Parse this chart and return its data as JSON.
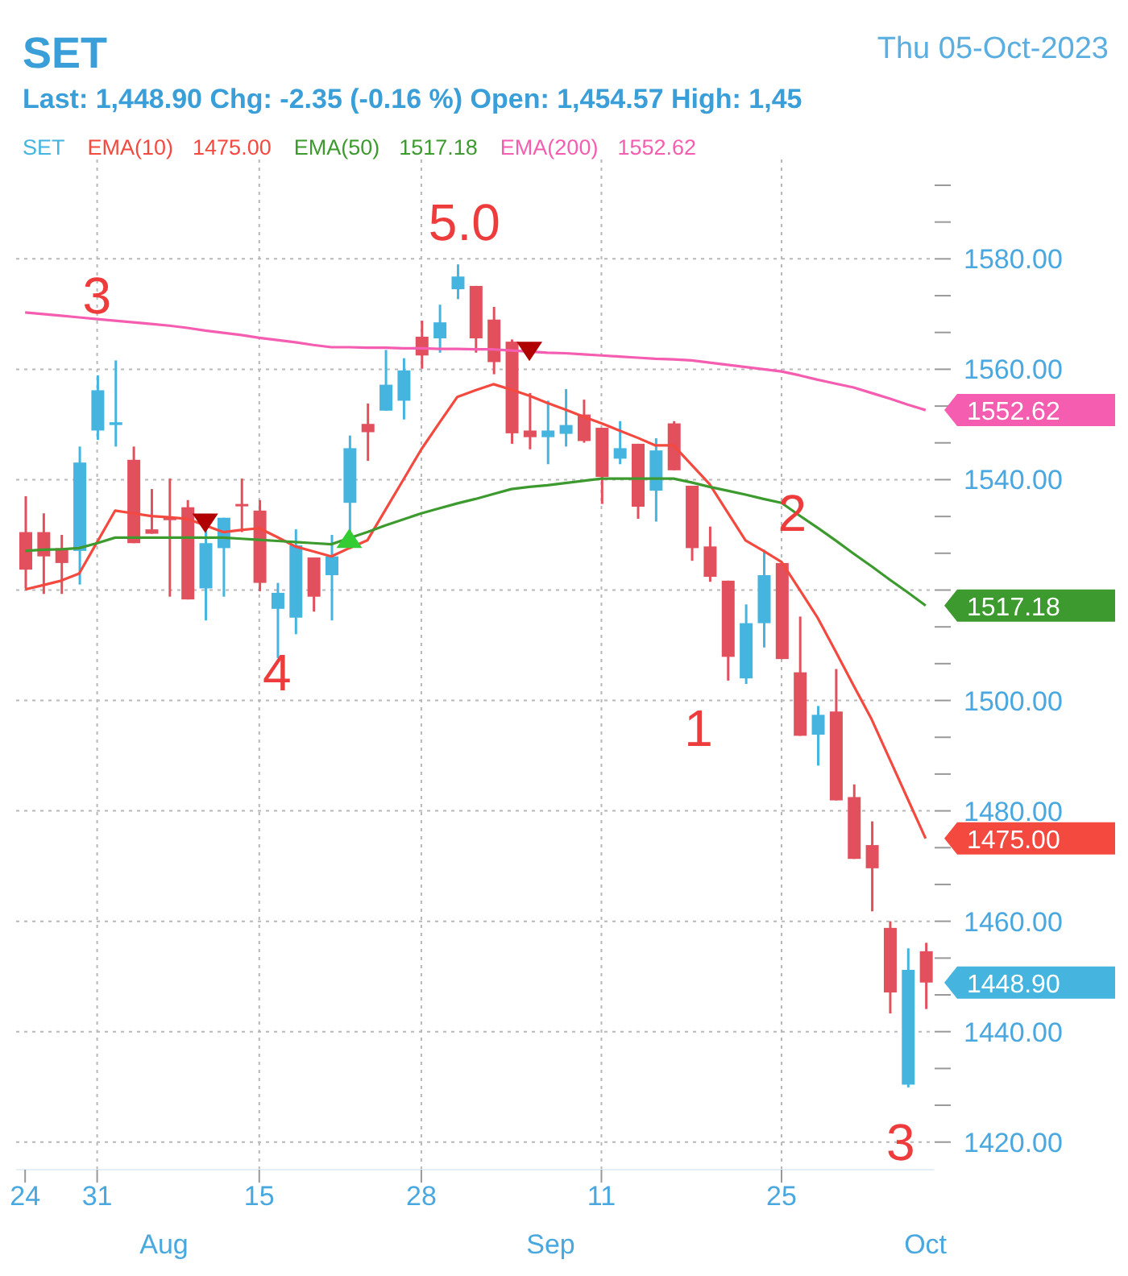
{
  "chart_data": {
    "type": "candlestick",
    "title": "SET",
    "subtitle": "Thu 05-Oct-2023",
    "categories": [
      "24",
      null,
      null,
      null,
      "31",
      null,
      null,
      null,
      null,
      null,
      null,
      null,
      null,
      "15",
      null,
      null,
      null,
      null,
      null,
      null,
      null,
      null,
      "28",
      null,
      null,
      null,
      null,
      null,
      null,
      null,
      null,
      null,
      "11",
      null,
      null,
      null,
      null,
      null,
      null,
      null,
      null,
      null,
      "25",
      null,
      null,
      null,
      null,
      null,
      null,
      null,
      null
    ],
    "series": [
      {
        "name": "SET",
        "color": "#45b5e0",
        "ohlc": [
          [
            1530.5,
            1537.0,
            1520.3,
            1523.7
          ],
          [
            1530.5,
            1533.9,
            1519.3,
            1526.1
          ],
          [
            1527.6,
            1530.0,
            1519.3,
            1524.9
          ],
          [
            1527.1,
            1546.0,
            1521.0,
            1543.1
          ],
          [
            1548.9,
            1558.9,
            1547.2,
            1556.2
          ],
          [
            1549.9,
            1561.6,
            1546.0,
            1550.4
          ],
          [
            1543.6,
            1546.0,
            1528.5,
            1528.5
          ],
          [
            1531.0,
            1538.3,
            1530.2,
            1530.2
          ],
          [
            1533.1,
            1540.2,
            1518.8,
            1532.7
          ],
          [
            1535.0,
            1536.3,
            1518.3,
            1518.3
          ],
          [
            1520.3,
            1531.0,
            1514.5,
            1528.5
          ],
          [
            1527.6,
            1533.1,
            1518.8,
            1533.1
          ],
          [
            1535.6,
            1540.2,
            1530.5,
            1535.2
          ],
          [
            1534.4,
            1536.3,
            1519.8,
            1521.3
          ],
          [
            1516.6,
            1521.3,
            1507.7,
            1519.5
          ],
          [
            1515.0,
            1531.0,
            1512.0,
            1528.1
          ],
          [
            1525.9,
            1525.9,
            1516.1,
            1518.8
          ],
          [
            1522.7,
            1530.0,
            1514.5,
            1526.1
          ],
          [
            1535.8,
            1548.0,
            1530.5,
            1545.7
          ],
          [
            1550.1,
            1553.8,
            1543.4,
            1548.6
          ],
          [
            1552.5,
            1563.5,
            1552.5,
            1557.2
          ],
          [
            1554.3,
            1562.0,
            1550.9,
            1559.8
          ],
          [
            1565.9,
            1568.8,
            1560.1,
            1562.5
          ],
          [
            1565.6,
            1571.7,
            1563.0,
            1568.5
          ],
          [
            1574.5,
            1579.0,
            1572.7,
            1576.8
          ],
          [
            1575.1,
            1575.1,
            1563.0,
            1565.6
          ],
          [
            1569.0,
            1571.3,
            1559.1,
            1561.3
          ],
          [
            1565.0,
            1565.4,
            1546.5,
            1548.4
          ],
          [
            1548.9,
            1555.7,
            1545.5,
            1547.7
          ],
          [
            1547.7,
            1554.3,
            1542.8,
            1548.9
          ],
          [
            1548.3,
            1556.4,
            1546.0,
            1549.9
          ],
          [
            1551.8,
            1554.5,
            1546.7,
            1547.0
          ],
          [
            1549.4,
            1549.4,
            1535.6,
            1540.5
          ],
          [
            1543.8,
            1550.6,
            1542.8,
            1545.7
          ],
          [
            1546.5,
            1546.5,
            1532.9,
            1535.1
          ],
          [
            1538.0,
            1547.5,
            1532.4,
            1545.3
          ],
          [
            1550.2,
            1550.6,
            1541.7,
            1541.7
          ],
          [
            1538.9,
            1538.9,
            1525.3,
            1527.6
          ],
          [
            1527.9,
            1531.5,
            1521.5,
            1522.4
          ],
          [
            1521.7,
            1521.7,
            1503.6,
            1507.9
          ],
          [
            1504.0,
            1517.4,
            1503.0,
            1514.0
          ],
          [
            1514.0,
            1527.3,
            1509.6,
            1522.7
          ],
          [
            1524.9,
            1524.9,
            1507.5,
            1507.5
          ],
          [
            1505.1,
            1515.2,
            1493.6,
            1493.6
          ],
          [
            1493.8,
            1499.0,
            1488.2,
            1497.4
          ],
          [
            1498.0,
            1505.7,
            1481.9,
            1481.9
          ],
          [
            1482.5,
            1484.8,
            1471.3,
            1471.3
          ],
          [
            1473.8,
            1478.1,
            1461.8,
            1469.6
          ],
          [
            1458.8,
            1460.0,
            1443.3,
            1447.1
          ],
          [
            1430.4,
            1455.1,
            1429.9,
            1451.2
          ],
          [
            1454.57,
            1456.1,
            1444.1,
            1448.9
          ]
        ],
        "colors": [
          "#e2505e",
          "#e2505e",
          "#e2505e",
          "#45b5e0",
          "#45b5e0",
          "#45b5e0",
          "#e2505e",
          "#e2505e",
          "#e2505e",
          "#e2505e",
          "#45b5e0",
          "#45b5e0",
          "#e2505e",
          "#e2505e",
          "#45b5e0",
          "#45b5e0",
          "#e2505e",
          "#45b5e0",
          "#45b5e0",
          "#e2505e",
          "#45b5e0",
          "#45b5e0",
          "#e2505e",
          "#45b5e0",
          "#45b5e0",
          "#e2505e",
          "#e2505e",
          "#e2505e",
          "#e2505e",
          "#45b5e0",
          "#45b5e0",
          "#e2505e",
          "#e2505e",
          "#45b5e0",
          "#e2505e",
          "#45b5e0",
          "#e2505e",
          "#e2505e",
          "#e2505e",
          "#e2505e",
          "#45b5e0",
          "#45b5e0",
          "#e2505e",
          "#e2505e",
          "#45b5e0",
          "#e2505e",
          "#e2505e",
          "#e2505e",
          "#e2505e",
          "#45b5e0",
          "#e2505e"
        ]
      },
      {
        "name": "EMA(10)",
        "type": "line",
        "color": "#f4493f",
        "values": [
          1520.1,
          1520.9,
          1521.7,
          1523.0,
          1528.7,
          1534.4,
          1533.9,
          1533.4,
          1533.2,
          1532.9,
          1531.7,
          1530.5,
          1530.9,
          1531.2,
          1529.6,
          1527.9,
          1527.0,
          1526.1,
          1527.6,
          1529.0,
          1534.5,
          1540.0,
          1545.5,
          1550.3,
          1555.0,
          1556.2,
          1557.3,
          1556.3,
          1555.2,
          1553.9,
          1552.7,
          1551.4,
          1550.2,
          1548.9,
          1547.6,
          1546.2,
          1546.2,
          1542.7,
          1539.2,
          1534.1,
          1529.0,
          1527.1,
          1525.1,
          1520.1,
          1515.0,
          1508.9,
          1502.7,
          1496.6,
          1489.4,
          1482.2,
          1475.0
        ]
      },
      {
        "name": "EMA(50)",
        "type": "line",
        "color": "#3c9a2e",
        "values": [
          1527.1,
          1527.3,
          1527.4,
          1527.6,
          1528.5,
          1529.5,
          1529.5,
          1529.5,
          1529.5,
          1529.5,
          1529.5,
          1529.5,
          1529.3,
          1529.1,
          1528.9,
          1528.7,
          1528.5,
          1528.3,
          1529.4,
          1530.5,
          1531.7,
          1532.8,
          1533.9,
          1534.8,
          1535.7,
          1536.5,
          1537.4,
          1538.3,
          1538.7,
          1539.0,
          1539.4,
          1539.8,
          1540.2,
          1540.2,
          1540.2,
          1540.2,
          1540.2,
          1539.5,
          1538.7,
          1538.0,
          1537.3,
          1536.5,
          1535.8,
          1533.5,
          1531.3,
          1529.0,
          1526.6,
          1524.3,
          1521.9,
          1519.6,
          1517.2
        ]
      },
      {
        "name": "EMA(200)",
        "type": "line",
        "color": "#f55db0",
        "values": [
          1570.3,
          1570.0,
          1569.7,
          1569.4,
          1569.1,
          1568.8,
          1568.5,
          1568.2,
          1567.9,
          1567.5,
          1567.0,
          1566.6,
          1566.2,
          1565.7,
          1565.3,
          1564.9,
          1564.4,
          1564.0,
          1564.0,
          1563.9,
          1563.9,
          1563.8,
          1563.8,
          1563.7,
          1563.7,
          1563.6,
          1563.6,
          1563.4,
          1563.2,
          1563.0,
          1562.9,
          1562.7,
          1562.5,
          1562.3,
          1562.1,
          1561.9,
          1561.8,
          1561.6,
          1561.2,
          1560.8,
          1560.4,
          1560.0,
          1559.6,
          1558.9,
          1558.1,
          1557.4,
          1556.7,
          1555.7,
          1554.7,
          1553.6,
          1552.6
        ]
      }
    ],
    "ylim": [
      1415,
      1598
    ],
    "yticks": [
      {
        "value": 1420,
        "label": "1420.00"
      },
      {
        "value": 1426.67,
        "label": null
      },
      {
        "value": 1433.33,
        "label": null
      },
      {
        "value": 1440,
        "label": "1440.00"
      },
      {
        "value": 1446.67,
        "label": null
      },
      {
        "value": 1453.33,
        "label": null
      },
      {
        "value": 1460,
        "label": "1460.00"
      },
      {
        "value": 1466.67,
        "label": null
      },
      {
        "value": 1473.33,
        "label": null
      },
      {
        "value": 1480,
        "label": "1480.00"
      },
      {
        "value": 1486.67,
        "label": null
      },
      {
        "value": 1493.33,
        "label": null
      },
      {
        "value": 1500,
        "label": "1500.00"
      },
      {
        "value": 1506.67,
        "label": null
      },
      {
        "value": 1513.33,
        "label": null
      },
      {
        "value": 1520,
        "label": null
      },
      {
        "value": 1526.67,
        "label": null
      },
      {
        "value": 1533.33,
        "label": null
      },
      {
        "value": 1540,
        "label": "1540.00"
      },
      {
        "value": 1546.67,
        "label": null
      },
      {
        "value": 1553.33,
        "label": null
      },
      {
        "value": 1560,
        "label": "1560.00"
      },
      {
        "value": 1566.67,
        "label": null
      },
      {
        "value": 1573.33,
        "label": null
      },
      {
        "value": 1580,
        "label": "1580.00"
      },
      {
        "value": 1586.67,
        "label": null
      },
      {
        "value": 1593.33,
        "label": null
      }
    ],
    "grid": true,
    "legend": "top left",
    "marker": "none",
    "annotations": [
      "Last: 1,448.90 Chg: -2.35 (-0.16 %) Open: 1,454.57 High: 1,45",
      "1475.00",
      "1517.18",
      "1552.62",
      "1448.90",
      "1475.00",
      "1517.18",
      "1552.62",
      "3",
      "4",
      "5.0",
      "1",
      "2",
      "3",
      "Aug",
      "Sep",
      "Oct"
    ]
  }
}
